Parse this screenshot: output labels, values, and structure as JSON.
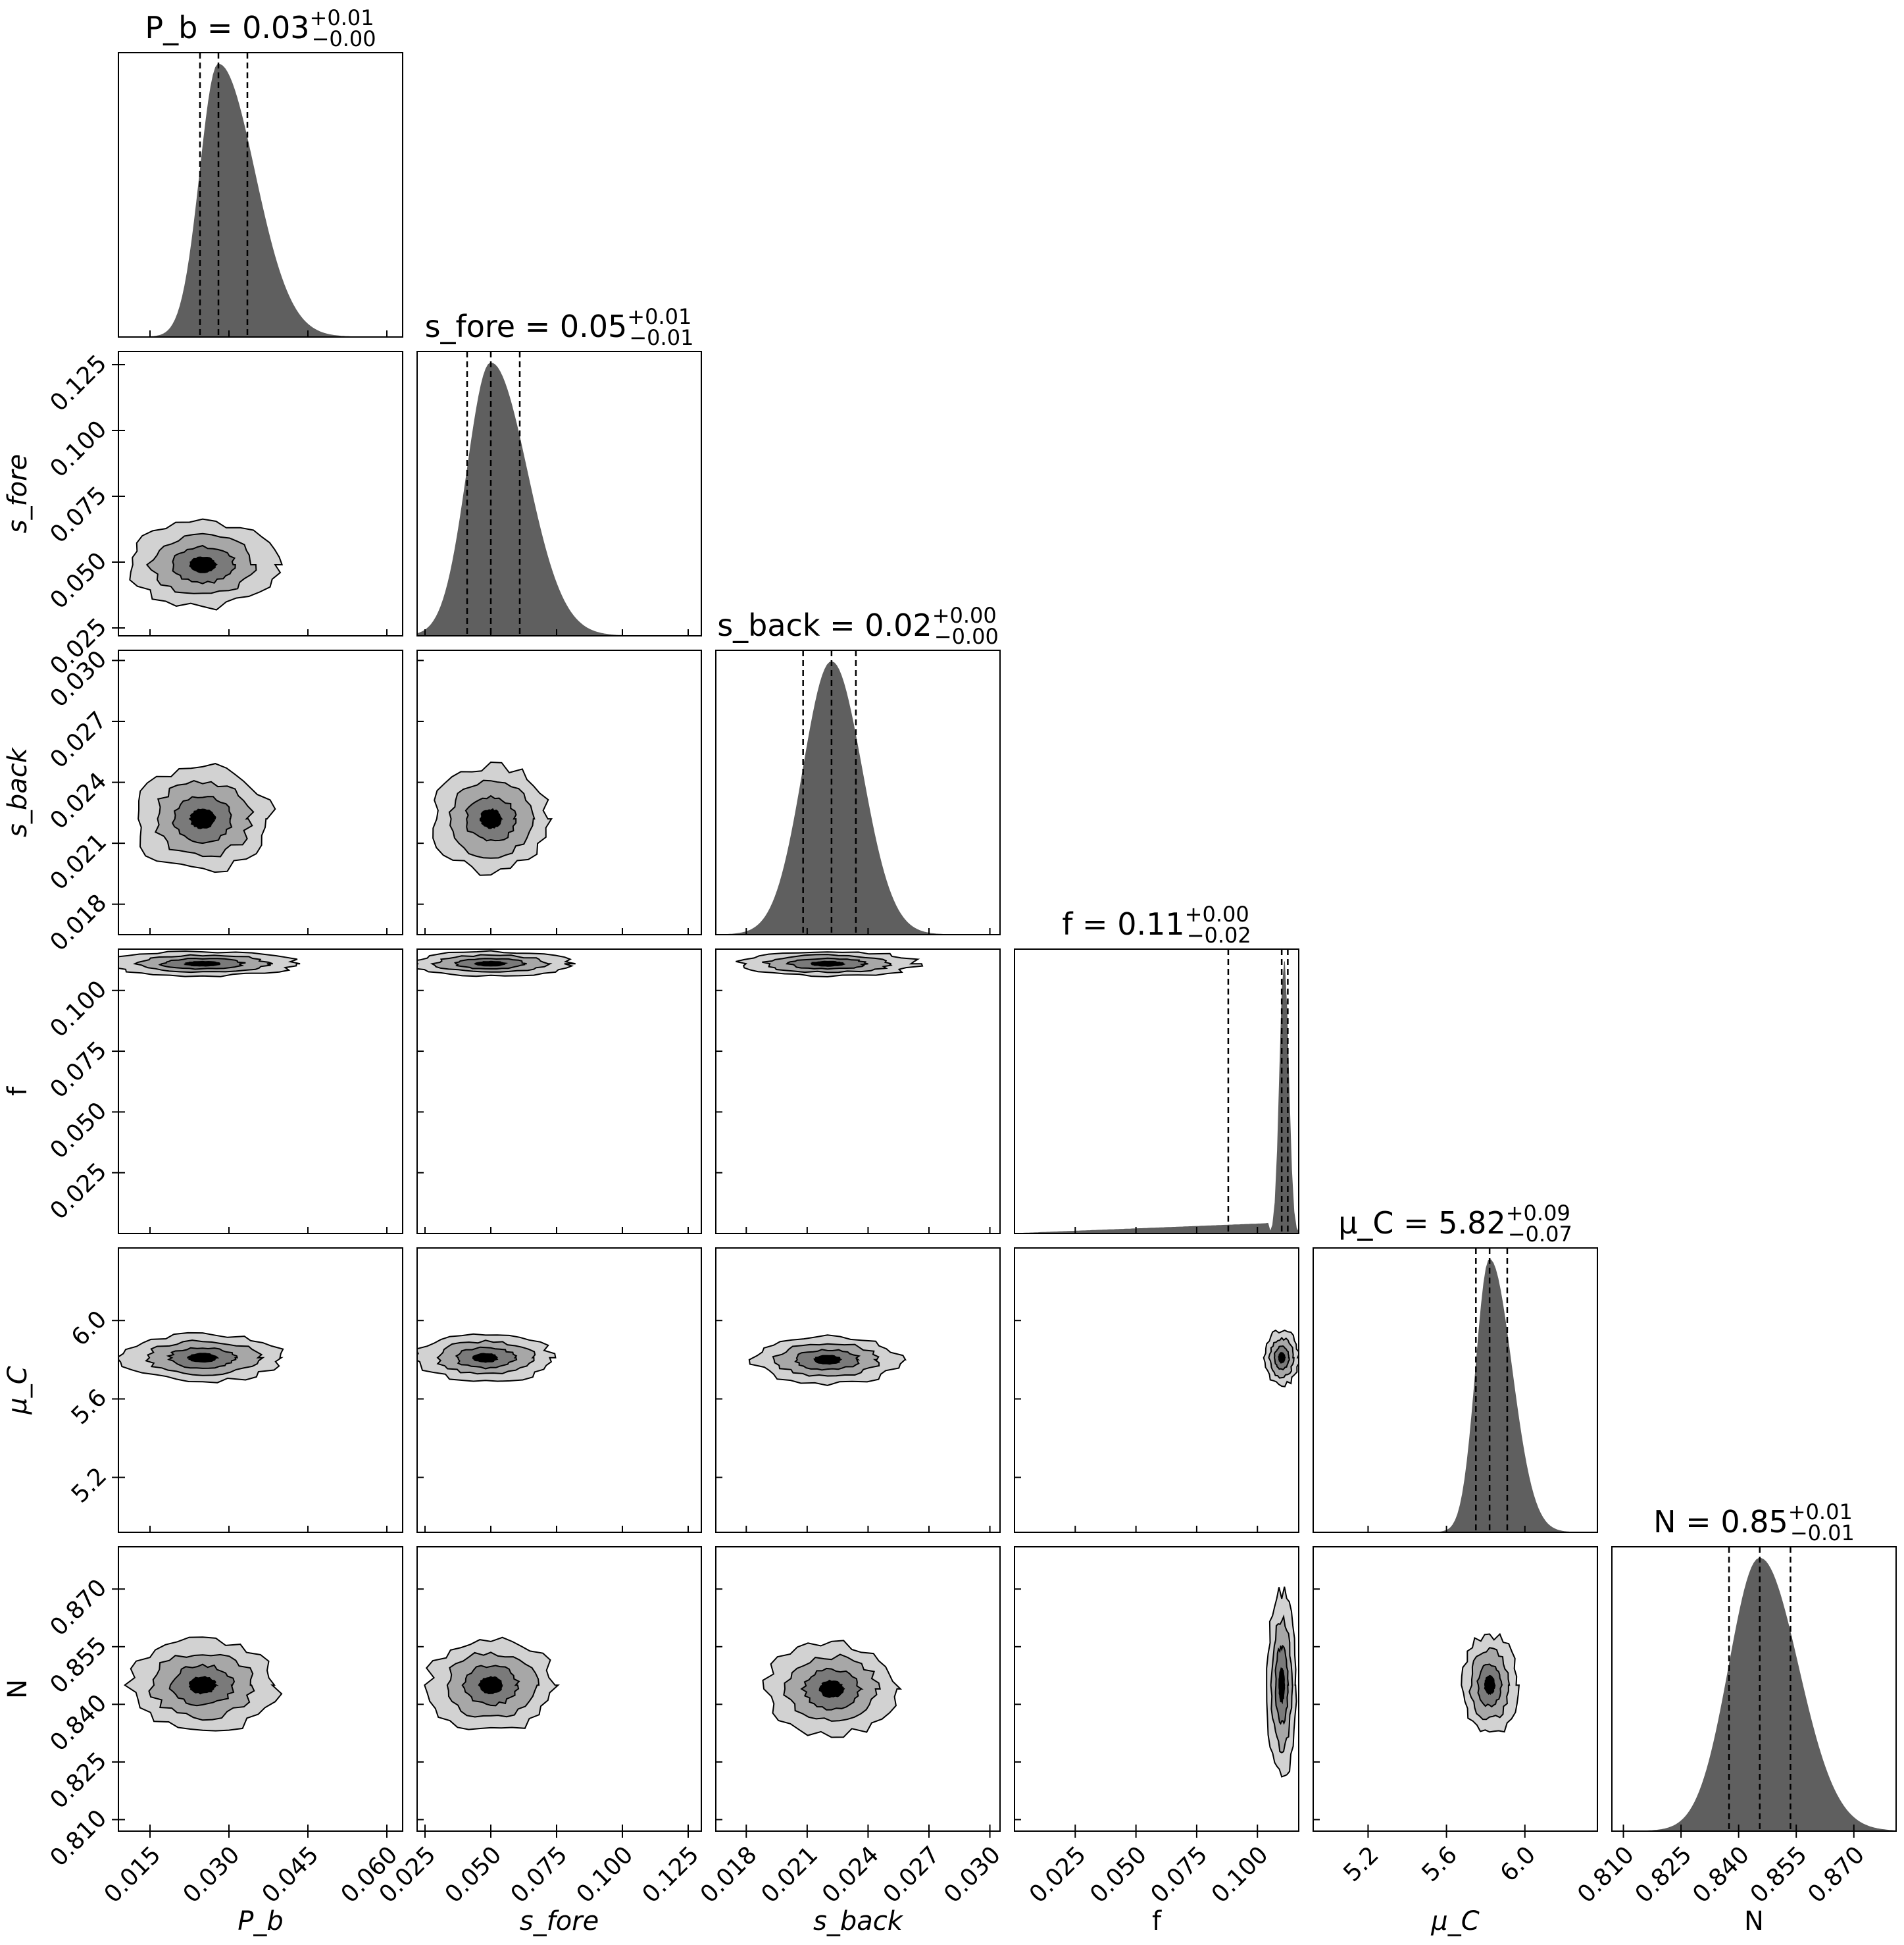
{
  "chart_data": {
    "type": "corner",
    "parameters": [
      {
        "key": "Pb",
        "axis_label": "P_b",
        "title": "P_b = 0.03",
        "title_sup": "+0.01",
        "title_sub": "−0.00",
        "median": 0.028,
        "q16": 0.0245,
        "q84": 0.0335,
        "range": [
          0.009,
          0.063
        ],
        "ticks": [
          "0.015",
          "0.030",
          "0.045",
          "0.060"
        ],
        "tick_values": [
          0.015,
          0.03,
          0.045,
          0.06
        ]
      },
      {
        "key": "sfore",
        "axis_label": "s_fore",
        "title": "s_fore = 0.05",
        "title_sup": "+0.01",
        "title_sub": "−0.01",
        "median": 0.05,
        "q16": 0.041,
        "q84": 0.061,
        "range": [
          0.022,
          0.13
        ],
        "ticks": [
          "0.025",
          "0.050",
          "0.075",
          "0.100",
          "0.125"
        ],
        "tick_values": [
          0.025,
          0.05,
          0.075,
          0.1,
          0.125
        ]
      },
      {
        "key": "sback",
        "axis_label": "s_back",
        "title": "s_back = 0.02",
        "title_sup": "+0.00",
        "title_sub": "−0.00",
        "median": 0.0222,
        "q16": 0.0208,
        "q84": 0.0234,
        "range": [
          0.0165,
          0.0305
        ],
        "ticks": [
          "0.018",
          "0.021",
          "0.024",
          "0.027",
          "0.030"
        ],
        "tick_values": [
          0.018,
          0.021,
          0.024,
          0.027,
          0.03
        ]
      },
      {
        "key": "f",
        "axis_label": "f",
        "title": "f = 0.11",
        "title_sup": "+0.00",
        "title_sub": "−0.02",
        "median": 0.11,
        "q16": 0.088,
        "q84": 0.1125,
        "range": [
          0.0,
          0.117
        ],
        "ticks": [
          "0.025",
          "0.050",
          "0.075",
          "0.100"
        ],
        "tick_values": [
          0.025,
          0.05,
          0.075,
          0.1
        ]
      },
      {
        "key": "muC",
        "axis_label": "μ_C",
        "title": "μ_C = 5.82",
        "title_sup": "+0.09",
        "title_sub": "−0.07",
        "median": 5.82,
        "q16": 5.75,
        "q84": 5.91,
        "range": [
          4.92,
          6.37
        ],
        "ticks": [
          "5.2",
          "5.6",
          "6.0"
        ],
        "tick_values": [
          5.2,
          5.6,
          6.0
        ]
      },
      {
        "key": "N",
        "axis_label": "N",
        "title": "N = 0.85",
        "title_sup": "+0.01",
        "title_sub": "−0.01",
        "median": 0.8455,
        "q16": 0.8375,
        "q84": 0.8535,
        "range": [
          0.807,
          0.881
        ],
        "ticks": [
          "0.810",
          "0.825",
          "0.840",
          "0.855",
          "0.870"
        ],
        "tick_values": [
          0.81,
          0.825,
          0.84,
          0.855,
          0.87
        ]
      }
    ],
    "contours": [
      {
        "x": "Pb",
        "y": "sfore",
        "center": [
          0.025,
          0.049
        ],
        "spread": [
          0.007,
          0.008
        ]
      },
      {
        "x": "Pb",
        "y": "sback",
        "center": [
          0.025,
          0.0222
        ],
        "spread": [
          0.0065,
          0.0013
        ]
      },
      {
        "x": "sfore",
        "y": "sback",
        "center": [
          0.05,
          0.0222
        ],
        "spread": [
          0.011,
          0.0013
        ]
      },
      {
        "x": "Pb",
        "y": "f",
        "center": [
          0.025,
          0.111
        ],
        "spread": [
          0.009,
          0.0025
        ]
      },
      {
        "x": "sfore",
        "y": "f",
        "center": [
          0.05,
          0.111
        ],
        "spread": [
          0.015,
          0.0025
        ]
      },
      {
        "x": "sback",
        "y": "f",
        "center": [
          0.022,
          0.111
        ],
        "spread": [
          0.0022,
          0.0025
        ]
      },
      {
        "x": "Pb",
        "y": "muC",
        "center": [
          0.025,
          5.81
        ],
        "spread": [
          0.0075,
          0.06
        ]
      },
      {
        "x": "sfore",
        "y": "muC",
        "center": [
          0.048,
          5.81
        ],
        "spread": [
          0.013,
          0.06
        ]
      },
      {
        "x": "sback",
        "y": "muC",
        "center": [
          0.022,
          5.8
        ],
        "spread": [
          0.0018,
          0.06
        ]
      },
      {
        "x": "f",
        "y": "muC",
        "center": [
          0.11,
          5.81
        ],
        "spread": [
          0.0035,
          0.07
        ]
      },
      {
        "x": "Pb",
        "y": "N",
        "center": [
          0.025,
          0.845
        ],
        "spread": [
          0.007,
          0.006
        ]
      },
      {
        "x": "sfore",
        "y": "N",
        "center": [
          0.05,
          0.845
        ],
        "spread": [
          0.012,
          0.006
        ]
      },
      {
        "x": "sback",
        "y": "N",
        "center": [
          0.0222,
          0.844
        ],
        "spread": [
          0.0016,
          0.006
        ]
      },
      {
        "x": "f",
        "y": "N",
        "center": [
          0.11,
          0.845
        ],
        "spread": [
          0.003,
          0.012
        ]
      },
      {
        "x": "muC",
        "y": "N",
        "center": [
          5.82,
          0.845
        ],
        "spread": [
          0.07,
          0.0065
        ]
      }
    ],
    "grid": false,
    "colors": {
      "fill": "#5f5f5f",
      "level1": "#d2d2d2",
      "level2": "#a7a7a7",
      "level3": "#7a7a7a",
      "core": "#000000",
      "line": "#000000"
    }
  }
}
